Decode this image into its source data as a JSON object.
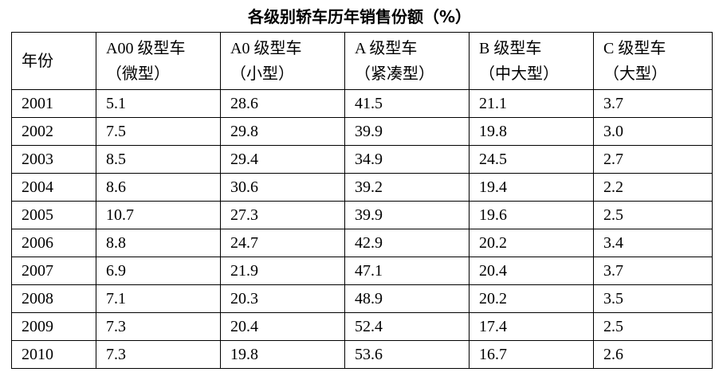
{
  "title": "各级别轿车历年销售份额（%）",
  "table": {
    "header": [
      [
        "年份"
      ],
      [
        "A00 级型车",
        "（微型）"
      ],
      [
        "A0 级型车",
        "（小型）"
      ],
      [
        "A 级型车",
        "（紧凑型）"
      ],
      [
        "B 级型车",
        "（中大型）"
      ],
      [
        "C 级型车",
        "（大型）"
      ]
    ],
    "rows": [
      [
        "2001",
        "5.1",
        "28.6",
        "41.5",
        "21.1",
        "3.7"
      ],
      [
        "2002",
        "7.5",
        "29.8",
        "39.9",
        "19.8",
        "3.0"
      ],
      [
        "2003",
        "8.5",
        "29.4",
        "34.9",
        "24.5",
        "2.7"
      ],
      [
        "2004",
        "8.6",
        "30.6",
        "39.2",
        "19.4",
        "2.2"
      ],
      [
        "2005",
        "10.7",
        "27.3",
        "39.9",
        "19.6",
        "2.5"
      ],
      [
        "2006",
        "8.8",
        "24.7",
        "42.9",
        "20.2",
        "3.4"
      ],
      [
        "2007",
        "6.9",
        "21.9",
        "47.1",
        "20.4",
        "3.7"
      ],
      [
        "2008",
        "7.1",
        "20.3",
        "48.9",
        "20.2",
        "3.5"
      ],
      [
        "2009",
        "7.3",
        "20.4",
        "52.4",
        "17.4",
        "2.5"
      ],
      [
        "2010",
        "7.3",
        "19.8",
        "53.6",
        "16.7",
        "2.6"
      ]
    ]
  }
}
